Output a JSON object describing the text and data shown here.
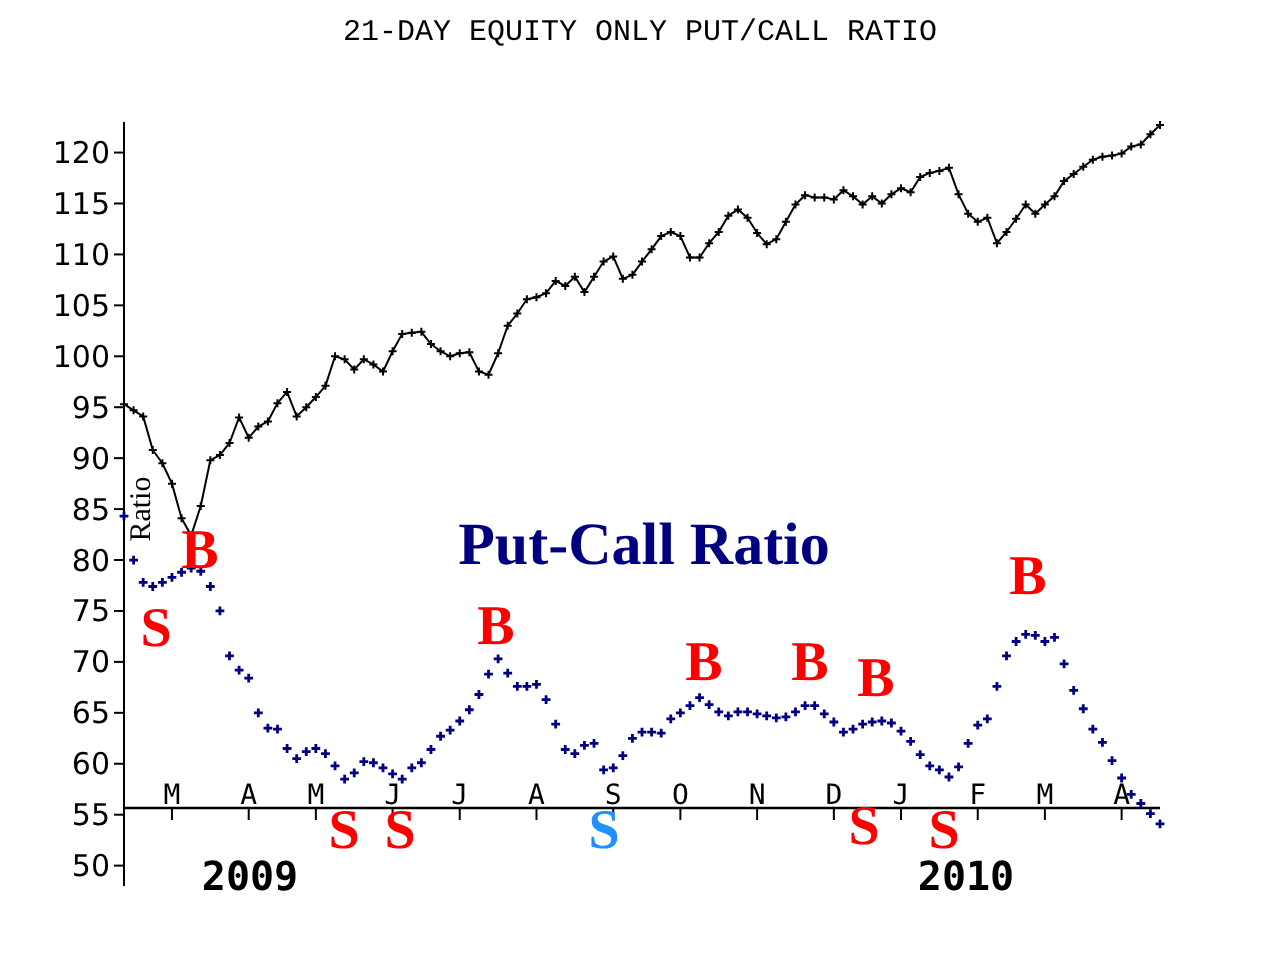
{
  "chart_data": {
    "type": "line",
    "title": "21-DAY EQUITY ONLY PUT/CALL RATIO",
    "ylabel": "Ratio",
    "categories": [
      null,
      null,
      null,
      null,
      null,
      "M",
      null,
      null,
      null,
      null,
      null,
      null,
      null,
      "A",
      null,
      null,
      null,
      null,
      null,
      null,
      "M",
      null,
      null,
      null,
      null,
      null,
      null,
      null,
      "J",
      null,
      null,
      null,
      null,
      null,
      null,
      "J",
      null,
      null,
      null,
      null,
      null,
      null,
      null,
      "A",
      null,
      null,
      null,
      null,
      null,
      null,
      null,
      "S",
      null,
      null,
      null,
      null,
      null,
      null,
      "O",
      null,
      null,
      null,
      null,
      null,
      null,
      null,
      "N",
      null,
      null,
      null,
      null,
      null,
      null,
      null,
      "D",
      null,
      null,
      null,
      null,
      null,
      null,
      "J",
      null,
      null,
      null,
      null,
      null,
      null,
      null,
      "F",
      null,
      null,
      null,
      null,
      null,
      null,
      "M",
      null,
      null,
      null,
      null,
      null,
      null,
      null,
      "A",
      null,
      null,
      null,
      null
    ],
    "ylim": [
      48,
      123
    ],
    "yticks": [
      50,
      55,
      60,
      65,
      70,
      75,
      80,
      85,
      90,
      95,
      100,
      105,
      110,
      115,
      120
    ],
    "grid": false,
    "marker": "cross",
    "line_style": "solid",
    "series": [
      {
        "color": "#000000",
        "values": [
          95.3,
          94.7,
          94.1,
          90.8,
          89.5,
          87.5,
          84.1,
          82.4,
          85.3,
          89.8,
          90.3,
          91.5,
          94.0,
          92.0,
          93.1,
          93.6,
          95.4,
          96.5,
          94.1,
          95.0,
          96.0,
          97.1,
          100.0,
          99.7,
          98.7,
          99.7,
          99.2,
          98.5,
          100.5,
          102.2,
          102.3,
          102.4,
          101.2,
          100.5,
          100.0,
          100.3,
          100.4,
          98.5,
          98.2,
          100.3,
          103.0,
          104.2,
          105.6,
          105.8,
          106.2,
          107.4,
          106.9,
          107.8,
          106.3,
          107.8,
          109.3,
          109.8,
          107.6,
          108.0,
          109.3,
          110.5,
          111.8,
          112.2,
          111.8,
          109.7,
          109.7,
          111.1,
          112.2,
          113.8,
          114.4,
          113.6,
          112.1,
          111.0,
          111.5,
          113.2,
          114.9,
          115.8,
          115.6,
          115.6,
          115.4,
          116.3,
          115.7,
          114.9,
          115.7,
          115.0,
          115.9,
          116.5,
          116.1,
          117.6,
          118.0,
          118.2,
          118.5,
          115.9,
          114.0,
          113.2,
          113.6,
          111.1,
          112.2,
          113.5,
          114.9,
          114.0,
          114.9,
          115.7,
          117.2,
          117.9,
          118.6,
          119.3,
          119.6,
          119.7,
          119.9,
          120.6,
          120.8,
          121.8,
          122.7
        ]
      },
      {
        "type": "scatter",
        "name": "Put-Call Ratio",
        "color": "#000080",
        "values": [
          84.3,
          80.0,
          77.8,
          77.4,
          77.8,
          78.3,
          78.8,
          79.2,
          78.9,
          77.4,
          75.0,
          70.6,
          69.2,
          68.4,
          65.0,
          63.5,
          63.4,
          61.5,
          60.5,
          61.2,
          61.5,
          61.0,
          59.8,
          58.5,
          59.1,
          60.2,
          60.1,
          59.6,
          59.0,
          58.5,
          59.6,
          60.1,
          61.4,
          62.7,
          63.3,
          64.2,
          65.3,
          66.8,
          68.8,
          70.3,
          68.9,
          67.6,
          67.6,
          67.8,
          66.3,
          63.9,
          61.4,
          61.0,
          61.8,
          62.0,
          59.4,
          59.6,
          60.8,
          62.5,
          63.1,
          63.1,
          63.0,
          64.4,
          65.0,
          65.7,
          66.5,
          65.8,
          65.1,
          64.7,
          65.1,
          65.1,
          64.9,
          64.7,
          64.5,
          64.6,
          65.1,
          65.7,
          65.7,
          64.9,
          64.1,
          63.1,
          63.4,
          63.9,
          64.1,
          64.2,
          64.0,
          63.2,
          62.2,
          60.9,
          59.8,
          59.4,
          58.7,
          59.7,
          62.0,
          63.8,
          64.4,
          67.6,
          70.6,
          72.0,
          72.7,
          72.6,
          72.0,
          72.4,
          69.8,
          67.2,
          65.4,
          63.4,
          62.1,
          60.3,
          58.6,
          57.0,
          56.1,
          55.1,
          54.1
        ]
      }
    ],
    "annotations": [
      "S",
      "B",
      "S",
      "S",
      "B",
      "S",
      "B",
      "B",
      "S",
      "B",
      "S",
      "B",
      "2009",
      "2010"
    ]
  }
}
